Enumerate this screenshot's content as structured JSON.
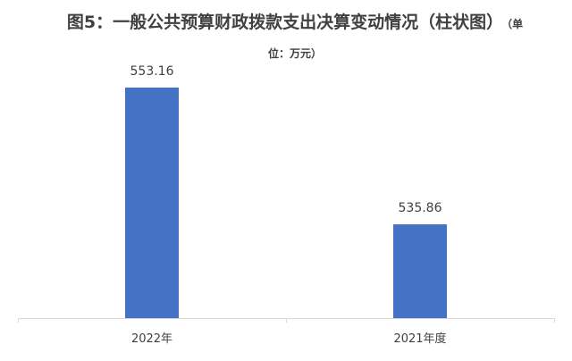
{
  "chart_data": {
    "type": "bar",
    "title": "图5：一般公共预算财政拨款支出决算变动情况（柱状图）",
    "unit_note": "（单位：万元）",
    "categories": [
      "2022年",
      "2021年度"
    ],
    "values": [
      553.16,
      535.86
    ],
    "data_labels": [
      "553.16",
      "535.86"
    ],
    "ylim": [
      524,
      556
    ],
    "grid": false,
    "legend": "none",
    "xlabel": "",
    "ylabel": "",
    "colors": {
      "bar": "#4472C4",
      "axis": "#d9d9d9",
      "text": "#404040"
    }
  }
}
